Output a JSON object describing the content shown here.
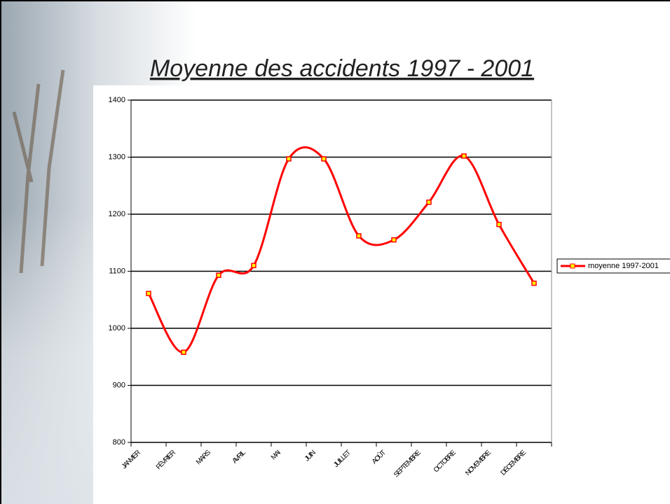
{
  "chart_data": {
    "type": "line",
    "title": "Moyenne des accidents 1997 - 2001",
    "categories": [
      "JANVIER",
      "FÉVRIER",
      "MARS",
      "AVRIL",
      "MAI",
      "JUIN",
      "JUILLET",
      "AOÛT",
      "SEPTEMBRE",
      "OCTOBRE",
      "NOVEMBRE",
      "DÉCEMBRE"
    ],
    "series": [
      {
        "name": "moyenne 1997-2001",
        "color": "#ff0000",
        "marker_color": "#ffff00",
        "values": [
          1061,
          958,
          1093,
          1110,
          1297,
          1297,
          1162,
          1155,
          1221,
          1302,
          1182,
          1079
        ]
      }
    ],
    "ylim": [
      800,
      1400
    ],
    "yticks": [
      800,
      900,
      1000,
      1100,
      1200,
      1300,
      1400
    ],
    "grid": true,
    "legend": "right"
  }
}
